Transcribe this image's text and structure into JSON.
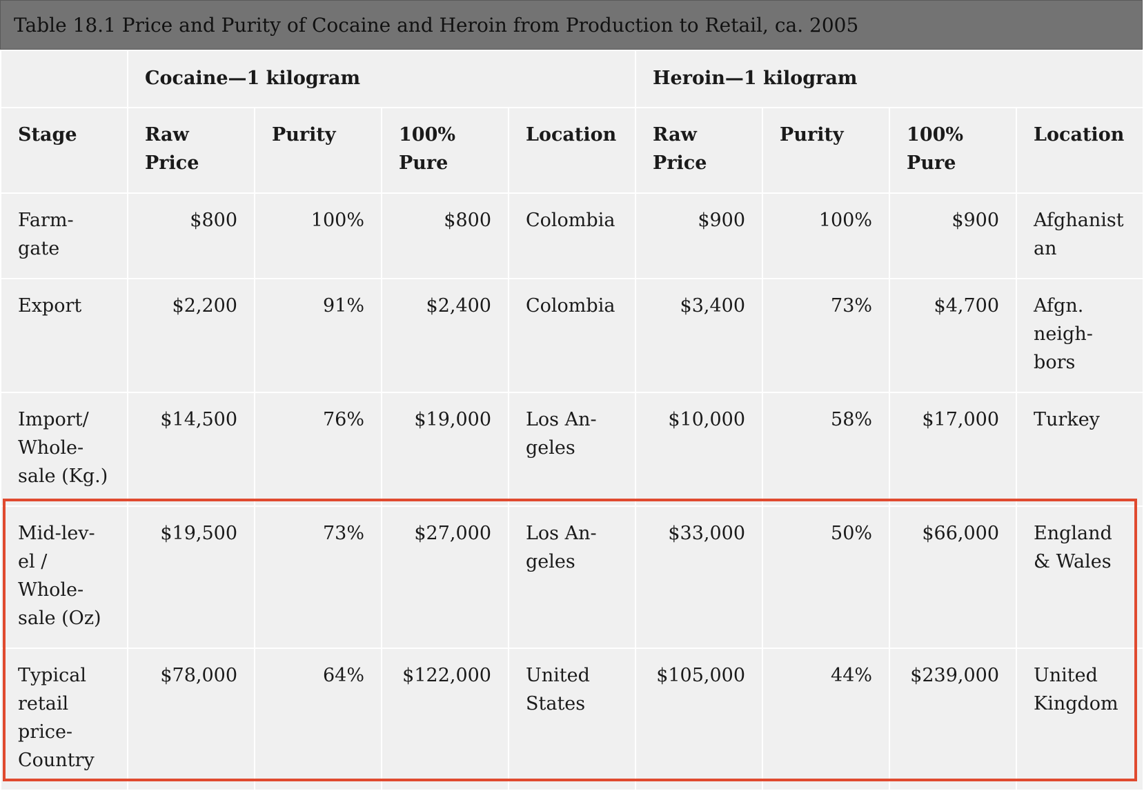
{
  "caption": "Table 18.1 Price and Purity of Cocaine and Heroin from Production to Retail, ca. 2005",
  "groups": {
    "cocaine": "Cocaine—1 kilogram",
    "heroin": "Heroin—1 kilogram"
  },
  "columns": {
    "stage": "Stage",
    "cocaine": [
      "Raw Price",
      "Purity",
      "100% Pure",
      "Location"
    ],
    "heroin": [
      "Raw Price",
      "Purity",
      "100% Pure",
      "Location"
    ]
  },
  "rows": [
    {
      "stage": "Farm-gate",
      "cocaine": [
        "$800",
        "100%",
        "$800",
        "Colombia"
      ],
      "heroin": [
        "$900",
        "100%",
        "$900",
        "Afghanistan"
      ]
    },
    {
      "stage": "Export",
      "cocaine": [
        "$2,200",
        "91%",
        "$2,400",
        "Colombia"
      ],
      "heroin": [
        "$3,400",
        "73%",
        "$4,700",
        "Afgn. neigh-bors"
      ]
    },
    {
      "stage": "Import/ Whole-sale (Kg.)",
      "cocaine": [
        "$14,500",
        "76%",
        "$19,000",
        "Los An-geles"
      ],
      "heroin": [
        "$10,000",
        "58%",
        "$17,000",
        "Turkey"
      ]
    },
    {
      "stage": "Mid-lev-el / Whole-sale (Oz)",
      "cocaine": [
        "$19,500",
        "73%",
        "$27,000",
        "Los An-geles"
      ],
      "heroin": [
        "$33,000",
        "50%",
        "$66,000",
        "England & Wales"
      ]
    },
    {
      "stage": "Typical retail price-Country",
      "cocaine": [
        "$78,000",
        "64%",
        "$122,000",
        "United States"
      ],
      "heroin": [
        "$105,000",
        "44%",
        "$239,000",
        "United Kingdom"
      ]
    }
  ],
  "highlight_color": "#e04a2f"
}
